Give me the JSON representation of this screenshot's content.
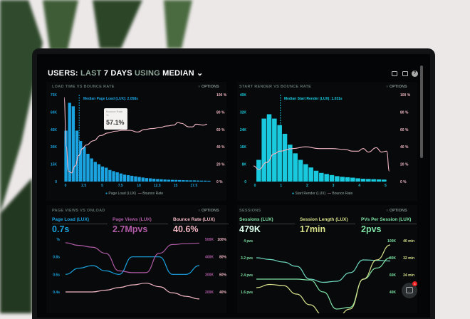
{
  "header": {
    "users": "USERS:",
    "last": "LAST",
    "days": "7 DAYS",
    "using": "USING",
    "median": "MEDIAN",
    "chevron": "chevron-down-icon"
  },
  "toolbar_icons": [
    "monitor-icon",
    "image-icon",
    "help-icon"
  ],
  "colors": {
    "blue": "#1aa3e0",
    "cyan": "#19c9de",
    "pink": "#f2b6c4",
    "purple": "#b05aa6",
    "green": "#7fe3a6",
    "teal": "#6fd9c0",
    "yellow": "#d7e08a"
  },
  "panels": {
    "load": {
      "title": "LOAD TIME VS BOUNCE RATE",
      "options": "OPTIONS",
      "median": "Median Page Load (LUX): 2.058s",
      "tooltip_label": "Bounce Rate %",
      "tooltip_value": "57.1%",
      "legend": [
        "Page Load (LUX)",
        "Bounce Rate"
      ]
    },
    "render": {
      "title": "START RENDER VS BOUNCE RATE",
      "options": "OPTIONS",
      "median": "Median Start Render (LUX): 1.031s",
      "legend": [
        "Start Render (LUX)",
        "Bounce Rate"
      ]
    },
    "views": {
      "title": "PAGE VIEWS VS ONLOAD",
      "options": "OPTIONS",
      "metrics": [
        {
          "label": "Page Load (LUX)",
          "value": "0.7s"
        },
        {
          "label": "Page Views (LUX)",
          "value": "2.7Mpvs"
        },
        {
          "label": "Bounce Rate (LUX)",
          "value": "40.6%"
        }
      ]
    },
    "sessions": {
      "title": "SESSIONS",
      "options": "OPTIONS",
      "metrics": [
        {
          "label": "Sessions (LUX)",
          "value": "479K"
        },
        {
          "label": "Session Length (LUX)",
          "value": "17min"
        },
        {
          "label": "PVs Per Session (LUX)",
          "value": "2pvs"
        }
      ]
    }
  },
  "chat": {
    "badge": "4"
  },
  "chart_data": [
    {
      "type": "bar",
      "title": "LOAD TIME VS BOUNCE RATE",
      "x_ticks": [
        "0",
        "2.5",
        "5",
        "7.5",
        "10",
        "12.5",
        "15",
        "17.5"
      ],
      "y_ticks": [
        "0",
        "15K",
        "30K",
        "45K",
        "60K",
        "75K"
      ],
      "y2_ticks": [
        "0 %",
        "20 %",
        "40 %",
        "60 %",
        "80 %",
        "100 %"
      ],
      "xlim": [
        0,
        20
      ],
      "ylim": [
        0,
        75
      ],
      "y2lim": [
        0,
        100
      ],
      "bin_width": 0.5,
      "median": 2.058,
      "series": [
        {
          "name": "Page Load (LUX)",
          "values": [
            44,
            68,
            65,
            44,
            35,
            30,
            24,
            20,
            17,
            15,
            13,
            12,
            10,
            9,
            8,
            7,
            6,
            5.5,
            5,
            4.5,
            4,
            3.5,
            3,
            2.8,
            2.5,
            2.2,
            2,
            1.8,
            1.6,
            1.5,
            1.4,
            1.3,
            1.2,
            1.1,
            1,
            1,
            0.9,
            0.8,
            0.8,
            0.7
          ]
        },
        {
          "name": "Bounce Rate",
          "points": [
            [
              0,
              97
            ],
            [
              0.3,
              40
            ],
            [
              0.6,
              12
            ],
            [
              1,
              10
            ],
            [
              1.5,
              18
            ],
            [
              2,
              30
            ],
            [
              2.5,
              38
            ],
            [
              3,
              42
            ],
            [
              4,
              47
            ],
            [
              5,
              53
            ],
            [
              6,
              56
            ],
            [
              7,
              58
            ],
            [
              8,
              59
            ],
            [
              9,
              59
            ],
            [
              10,
              57
            ],
            [
              11,
              60
            ],
            [
              12,
              61
            ],
            [
              13,
              62
            ],
            [
              14,
              64
            ],
            [
              15,
              65
            ],
            [
              15.5,
              68
            ],
            [
              16,
              67
            ],
            [
              17,
              63
            ],
            [
              17.5,
              63
            ],
            [
              18,
              66
            ],
            [
              19,
              65
            ],
            [
              19.5,
              66
            ]
          ]
        }
      ]
    },
    {
      "type": "bar",
      "title": "START RENDER VS BOUNCE RATE",
      "x_ticks": [
        "0",
        "1",
        "2",
        "3",
        "4",
        "5"
      ],
      "y_ticks": [
        "0",
        "8K",
        "16K",
        "24K",
        "32K",
        "40K"
      ],
      "y2_ticks": [
        "0 %",
        "20 %",
        "40 %",
        "60 %",
        "80 %",
        "100 %"
      ],
      "xlim": [
        0,
        5.4
      ],
      "ylim": [
        0,
        40
      ],
      "y2lim": [
        0,
        100
      ],
      "bin_width": 0.2,
      "median": 1.031,
      "series": [
        {
          "name": "Start Render (LUX)",
          "values": [
            10,
            29,
            31,
            29,
            26,
            22,
            17,
            13,
            10,
            8,
            6.5,
            5,
            4,
            3.5,
            3,
            2.5,
            2.2,
            2,
            1.8,
            1.5,
            1.3,
            1.2,
            1.1,
            1,
            0.9
          ]
        },
        {
          "name": "Bounce Rate",
          "points": [
            [
              0,
              18
            ],
            [
              0.2,
              14
            ],
            [
              0.5,
              22
            ],
            [
              0.8,
              32
            ],
            [
              1,
              35
            ],
            [
              1.5,
              38
            ],
            [
              2,
              40
            ],
            [
              2.5,
              38
            ],
            [
              3,
              38
            ],
            [
              3.5,
              37
            ],
            [
              3.8,
              35
            ],
            [
              4,
              35
            ],
            [
              4.2,
              38
            ],
            [
              4.4,
              34
            ],
            [
              4.7,
              39
            ],
            [
              4.9,
              34
            ],
            [
              5.1,
              35
            ],
            [
              5.2,
              12
            ]
          ]
        }
      ]
    },
    {
      "type": "line",
      "title": "PAGE VIEWS VS ONLOAD",
      "y_ticks": [
        "%",
        "0.8s",
        "0.6s",
        "0.4s"
      ],
      "y2_ticks": [
        "500K",
        "400K",
        "300K",
        "200K"
      ],
      "y3_ticks": [
        "100%",
        "80%",
        "60%",
        "40%"
      ],
      "series": [
        {
          "name": "Page Load (LUX)",
          "axis": [
            0.4,
            1.0
          ],
          "values": [
            0.6,
            0.67,
            0.7,
            0.64,
            0.6,
            0.8,
            0.8,
            0.8,
            0.6,
            0.6,
            0.7
          ]
        },
        {
          "name": "Page Views (LUX)",
          "axis": [
            200,
            500
          ],
          "values": [
            480,
            465,
            455,
            420,
            320,
            310,
            310,
            420,
            470,
            475,
            478
          ]
        },
        {
          "name": "Bounce Rate (LUX)",
          "axis": [
            40,
            100
          ],
          "values": [
            40,
            40,
            40,
            42,
            45,
            48,
            50,
            46,
            39,
            35,
            32
          ]
        }
      ]
    },
    {
      "type": "line",
      "title": "SESSIONS",
      "y_ticks": [
        "4 pvs",
        "3.2 pvs",
        "2.4 pvs",
        "1.6 pvs"
      ],
      "y2_ticks": [
        "100K",
        "80K",
        "60K",
        "40K"
      ],
      "y3_ticks": [
        "40 min",
        "32 min",
        "24 min"
      ],
      "series": [
        {
          "name": "PVs Per Session (LUX)",
          "axis": [
            1.6,
            4
          ],
          "values": [
            3.2,
            3.12,
            3.0,
            2.8,
            2.2,
            2.05,
            2.1,
            2.5,
            3.1,
            3.08,
            3.05
          ]
        },
        {
          "name": "Sessions (LUX)",
          "axis": [
            40,
            100
          ],
          "values": [
            55,
            55,
            55,
            55,
            54,
            40,
            20,
            22,
            55,
            68,
            80
          ]
        },
        {
          "name": "Session Length (LUX)",
          "axis": [
            16,
            40
          ],
          "values": [
            18,
            19.5,
            19,
            15,
            10,
            5,
            4,
            8,
            22,
            31,
            38
          ]
        }
      ]
    }
  ]
}
